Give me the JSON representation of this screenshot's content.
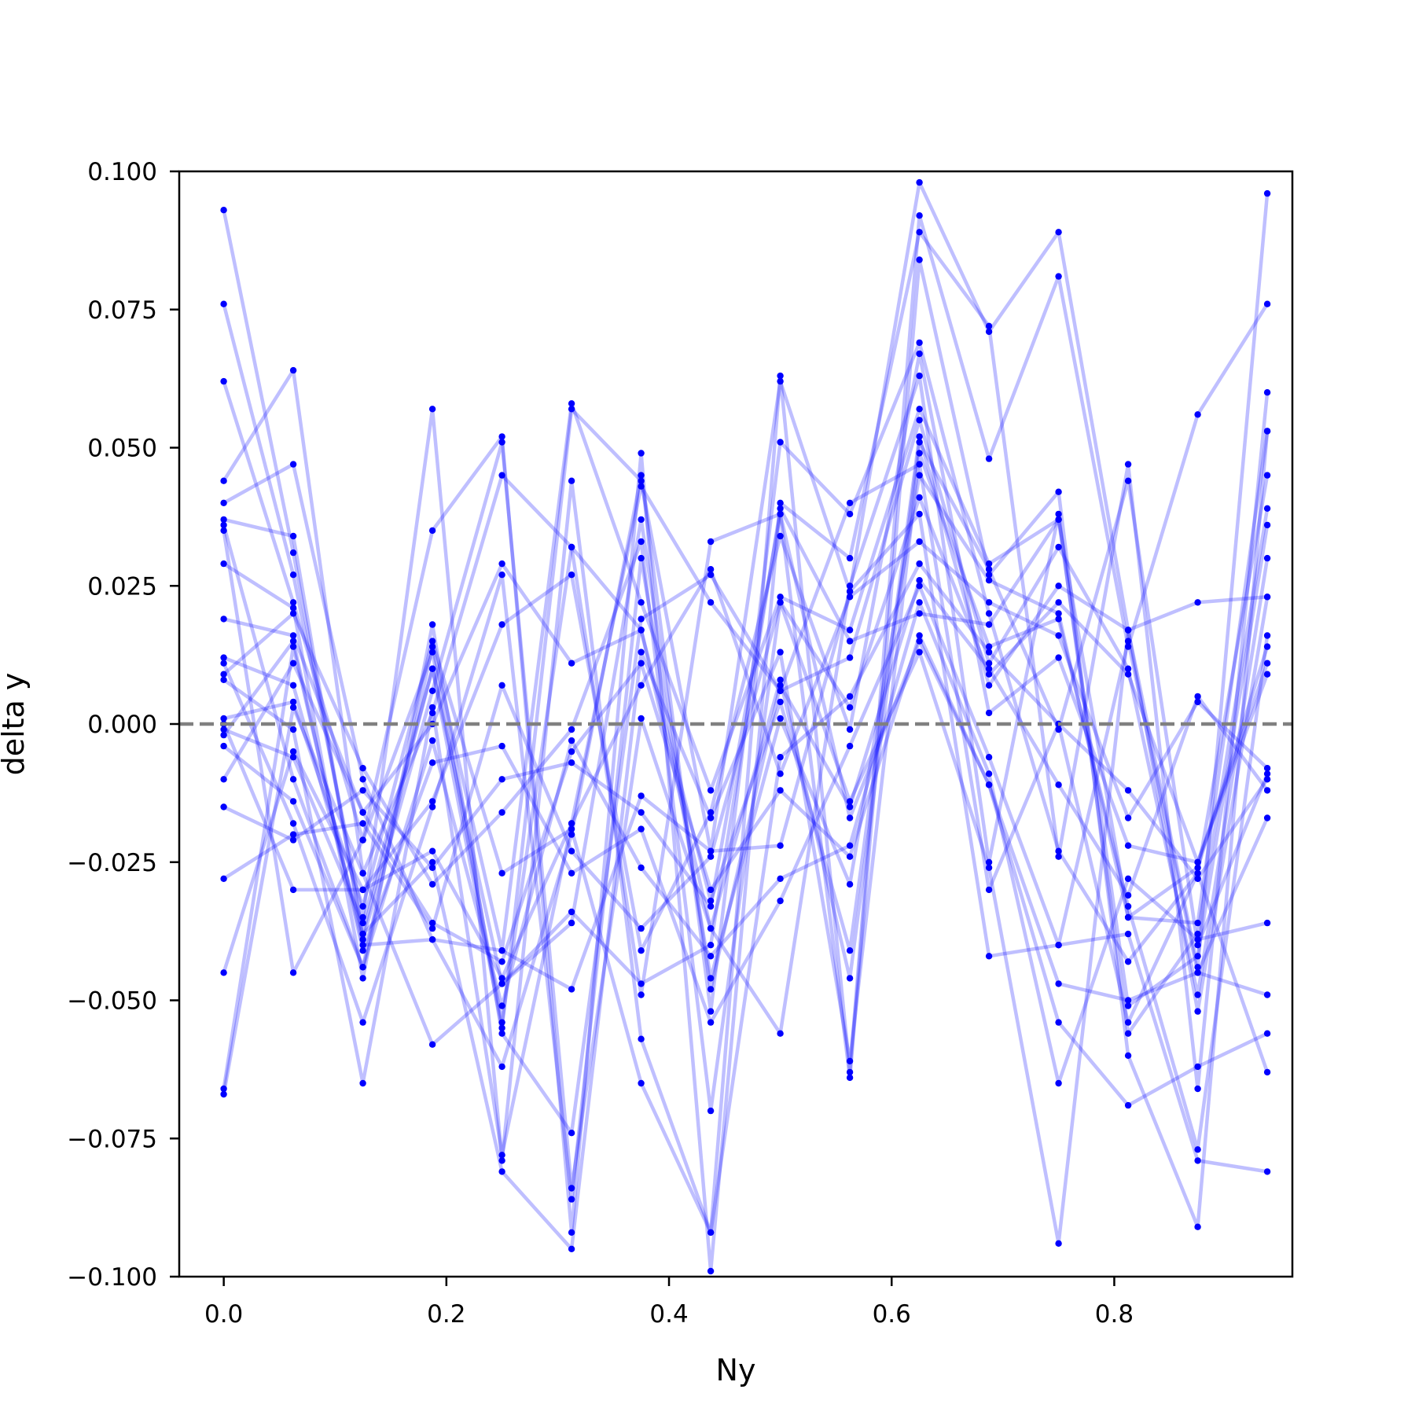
{
  "chart_data": {
    "type": "line",
    "title": "",
    "xlabel": "Ny",
    "ylabel": "delta y",
    "xlim": [
      -0.04,
      0.96
    ],
    "ylim": [
      -0.1,
      0.1
    ],
    "grid": false,
    "x_ticks": [
      0.0,
      0.2,
      0.4,
      0.6,
      0.8
    ],
    "x_tick_labels": [
      "0.0",
      "0.2",
      "0.4",
      "0.6",
      "0.8"
    ],
    "y_ticks": [
      0.1,
      0.075,
      0.05,
      0.025,
      0.0,
      -0.025,
      -0.05,
      -0.075,
      -0.1
    ],
    "y_tick_labels": [
      "0.100",
      "0.075",
      "0.050",
      "0.025",
      "0.000",
      "−0.025",
      "−0.050",
      "−0.075",
      "−0.100"
    ],
    "reference_line": {
      "y": 0.0,
      "style": "dashed",
      "color": "#808080"
    },
    "series_color": "#0000ff",
    "x": [
      0.0,
      0.0625,
      0.125,
      0.1875,
      0.25,
      0.3125,
      0.375,
      0.4375,
      0.5,
      0.5625,
      0.625,
      0.6875,
      0.75,
      0.8125,
      0.875,
      0.9375
    ],
    "series": [
      {
        "values": [
          0.093,
          0.031,
          -0.038,
          0.01,
          -0.055,
          0.057,
          0.044,
          -0.023,
          0.062,
          0.024,
          0.098,
          0.071,
          0.089,
          0.017,
          -0.044,
          0.096
        ]
      },
      {
        "values": [
          0.076,
          0.027,
          -0.035,
          0.057,
          -0.079,
          0.044,
          -0.057,
          -0.092,
          0.063,
          -0.063,
          0.092,
          0.048,
          0.081,
          0.014,
          0.056,
          0.076
        ]
      },
      {
        "values": [
          0.062,
          0.022,
          -0.021,
          0.035,
          0.052,
          -0.092,
          0.049,
          -0.099,
          0.04,
          0.03,
          0.089,
          0.072,
          -0.024,
          0.047,
          -0.066,
          0.06
        ]
      },
      {
        "values": [
          0.044,
          0.064,
          -0.027,
          0.002,
          0.045,
          0.032,
          -0.049,
          0.033,
          0.038,
          -0.064,
          0.084,
          0.027,
          0.042,
          -0.06,
          -0.091,
          0.053
        ]
      },
      {
        "values": [
          0.04,
          0.047,
          -0.01,
          -0.039,
          -0.062,
          -0.02,
          0.045,
          -0.052,
          0.051,
          0.038,
          0.069,
          0.02,
          -0.023,
          -0.043,
          -0.027,
          0.045
        ]
      },
      {
        "values": [
          0.037,
          0.034,
          -0.039,
          0.006,
          0.051,
          -0.084,
          0.001,
          -0.037,
          -0.056,
          0.025,
          0.063,
          -0.025,
          0.038,
          -0.056,
          -0.038,
          0.039
        ]
      },
      {
        "values": [
          0.036,
          -0.01,
          -0.044,
          0.014,
          -0.041,
          0.058,
          0.022,
          -0.012,
          0.023,
          0.017,
          0.057,
          0.029,
          0.037,
          -0.051,
          -0.042,
          0.036
        ]
      },
      {
        "values": [
          0.029,
          0.021,
          -0.046,
          0.018,
          -0.056,
          -0.074,
          0.019,
          0.027,
          0.006,
          0.012,
          0.055,
          0.011,
          0.032,
          0.01,
          -0.049,
          0.03
        ]
      },
      {
        "values": [
          0.019,
          0.016,
          -0.016,
          0.0,
          0.029,
          0.011,
          0.017,
          -0.032,
          0.004,
          -0.041,
          0.052,
          0.007,
          0.025,
          0.017,
          -0.052,
          0.023
        ]
      },
      {
        "values": [
          0.012,
          0.007,
          -0.038,
          -0.025,
          -0.081,
          -0.095,
          0.013,
          -0.017,
          0.013,
          -0.061,
          0.049,
          0.014,
          0.019,
          -0.033,
          -0.077,
          0.016
        ]
      },
      {
        "values": [
          0.011,
          -0.018,
          -0.054,
          -0.015,
          0.027,
          -0.086,
          0.03,
          -0.046,
          0.001,
          -0.029,
          0.045,
          0.026,
          0.02,
          -0.035,
          -0.026,
          0.014
        ]
      },
      {
        "values": [
          0.009,
          0.02,
          -0.008,
          -0.029,
          -0.016,
          -0.001,
          0.033,
          -0.07,
          0.022,
          0.003,
          0.041,
          0.009,
          0.022,
          0.009,
          -0.025,
          0.011
        ]
      },
      {
        "values": [
          0.008,
          -0.001,
          -0.065,
          0.003,
          -0.078,
          -0.018,
          0.007,
          0.028,
          -0.009,
          0.023,
          0.033,
          0.022,
          0.016,
          -0.017,
          0.004,
          -0.008
        ]
      },
      {
        "values": [
          0.001,
          0.004,
          -0.033,
          0.015,
          -0.027,
          -0.019,
          -0.065,
          -0.092,
          -0.006,
          0.005,
          0.029,
          0.013,
          0.0,
          -0.012,
          -0.028,
          -0.01
        ]
      },
      {
        "values": [
          -0.001,
          -0.006,
          -0.036,
          0.01,
          -0.047,
          -0.036,
          0.037,
          -0.048,
          0.007,
          -0.015,
          0.026,
          0.01,
          -0.011,
          -0.031,
          0.005,
          -0.012
        ]
      },
      {
        "values": [
          -0.002,
          0.015,
          -0.041,
          -0.007,
          -0.004,
          -0.027,
          -0.019,
          -0.054,
          -0.032,
          -0.004,
          0.025,
          -0.006,
          -0.04,
          0.015,
          -0.045,
          -0.017
        ]
      },
      {
        "values": [
          -0.004,
          -0.014,
          -0.044,
          -0.003,
          -0.051,
          -0.003,
          -0.026,
          -0.042,
          -0.028,
          -0.022,
          0.022,
          -0.009,
          -0.065,
          -0.028,
          -0.039,
          -0.036
        ]
      },
      {
        "values": [
          -0.01,
          0.011,
          -0.016,
          -0.036,
          -0.043,
          -0.005,
          0.011,
          -0.03,
          -0.012,
          -0.024,
          0.016,
          -0.011,
          -0.047,
          -0.05,
          -0.045,
          -0.049
        ]
      },
      {
        "values": [
          -0.015,
          -0.021,
          -0.012,
          -0.026,
          -0.01,
          -0.007,
          -0.016,
          -0.033,
          0.038,
          -0.017,
          0.015,
          -0.011,
          -0.054,
          -0.069,
          -0.062,
          -0.056
        ]
      },
      {
        "values": [
          -0.028,
          -0.02,
          -0.018,
          -0.037,
          0.007,
          -0.023,
          -0.037,
          -0.024,
          0.022,
          -0.014,
          0.013,
          -0.026,
          -0.094,
          0.017,
          0.022,
          0.023
        ]
      },
      {
        "values": [
          -0.045,
          -0.005,
          -0.03,
          -0.023,
          -0.046,
          -0.018,
          0.043,
          0.022,
          0.006,
          0.04,
          0.047,
          -0.03,
          0.0,
          -0.054,
          -0.027,
          -0.063
        ]
      },
      {
        "values": [
          -0.066,
          0.014,
          -0.04,
          -0.039,
          -0.041,
          -0.048,
          -0.013,
          -0.023,
          -0.022,
          0.024,
          0.038,
          -0.042,
          -0.04,
          -0.038,
          -0.079,
          -0.081
        ]
      },
      {
        "values": [
          -0.067,
          0.003,
          -0.027,
          -0.058,
          -0.047,
          -0.034,
          -0.047,
          -0.04,
          0.039,
          0.015,
          0.02,
          0.018,
          0.037,
          -0.035,
          -0.036,
          0.053
        ]
      },
      {
        "values": [
          0.035,
          -0.045,
          -0.021,
          0.013,
          -0.054,
          0.032,
          0.017,
          -0.037,
          0.008,
          -0.046,
          0.051,
          0.028,
          -0.001,
          0.044,
          -0.04,
          -0.009
        ]
      },
      {
        "values": [
          0.0,
          -0.03,
          -0.03,
          -0.014,
          0.018,
          0.027,
          -0.041,
          -0.016,
          0.034,
          -0.001,
          0.067,
          0.002,
          0.012,
          -0.022,
          -0.025,
          0.009
        ]
      }
    ]
  }
}
